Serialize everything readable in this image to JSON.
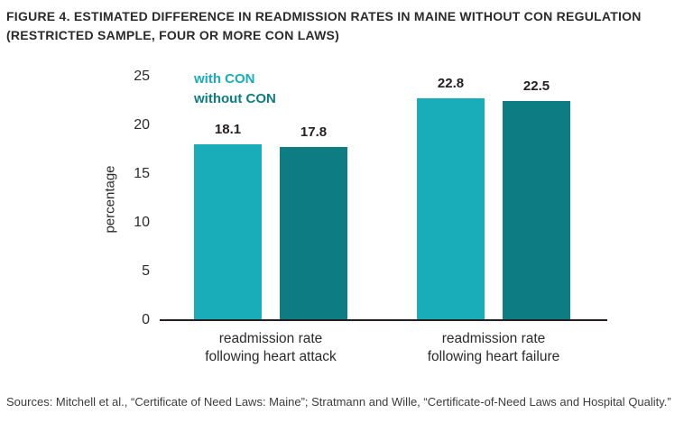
{
  "header": {
    "title_lines": [
      "FIGURE 4. ESTIMATED DIFFERENCE IN READMISSION RATES IN MAINE WITHOUT CON REGULATION",
      "(RESTRICTED SAMPLE, FOUR OR MORE CON LAWS)"
    ]
  },
  "chart_data": {
    "type": "bar",
    "title": "FIGURE 4. ESTIMATED DIFFERENCE IN READMISSION RATES IN MAINE WITHOUT CON REGULATION (RESTRICTED SAMPLE, FOUR OR MORE CON LAWS)",
    "categories": [
      [
        "readmission rate",
        "following heart attack"
      ],
      [
        "readmission rate",
        "following heart failure"
      ]
    ],
    "series": [
      {
        "name": "with CON",
        "color": "#19ACB9",
        "values": [
          18.1,
          22.8
        ]
      },
      {
        "name": "without CON",
        "color": "#0D7C83",
        "values": [
          17.8,
          22.5
        ]
      }
    ],
    "xlabel": "",
    "ylabel": "percentage",
    "ylim": [
      0,
      25
    ],
    "yticks": [
      0,
      5,
      10,
      15,
      20,
      25
    ],
    "grid": false,
    "legend_position": "top-left",
    "colors": {
      "axis": "#231F20",
      "text": "#2B2B2B",
      "value_label": "#231F20"
    }
  },
  "footer": {
    "sources_lines": [
      "Sources: Mitchell et al., “Certificate of Need Laws: Maine”; Stratmann and Wille, “Certificate-of-Need Laws and Hospital",
      "Quality.”"
    ]
  }
}
